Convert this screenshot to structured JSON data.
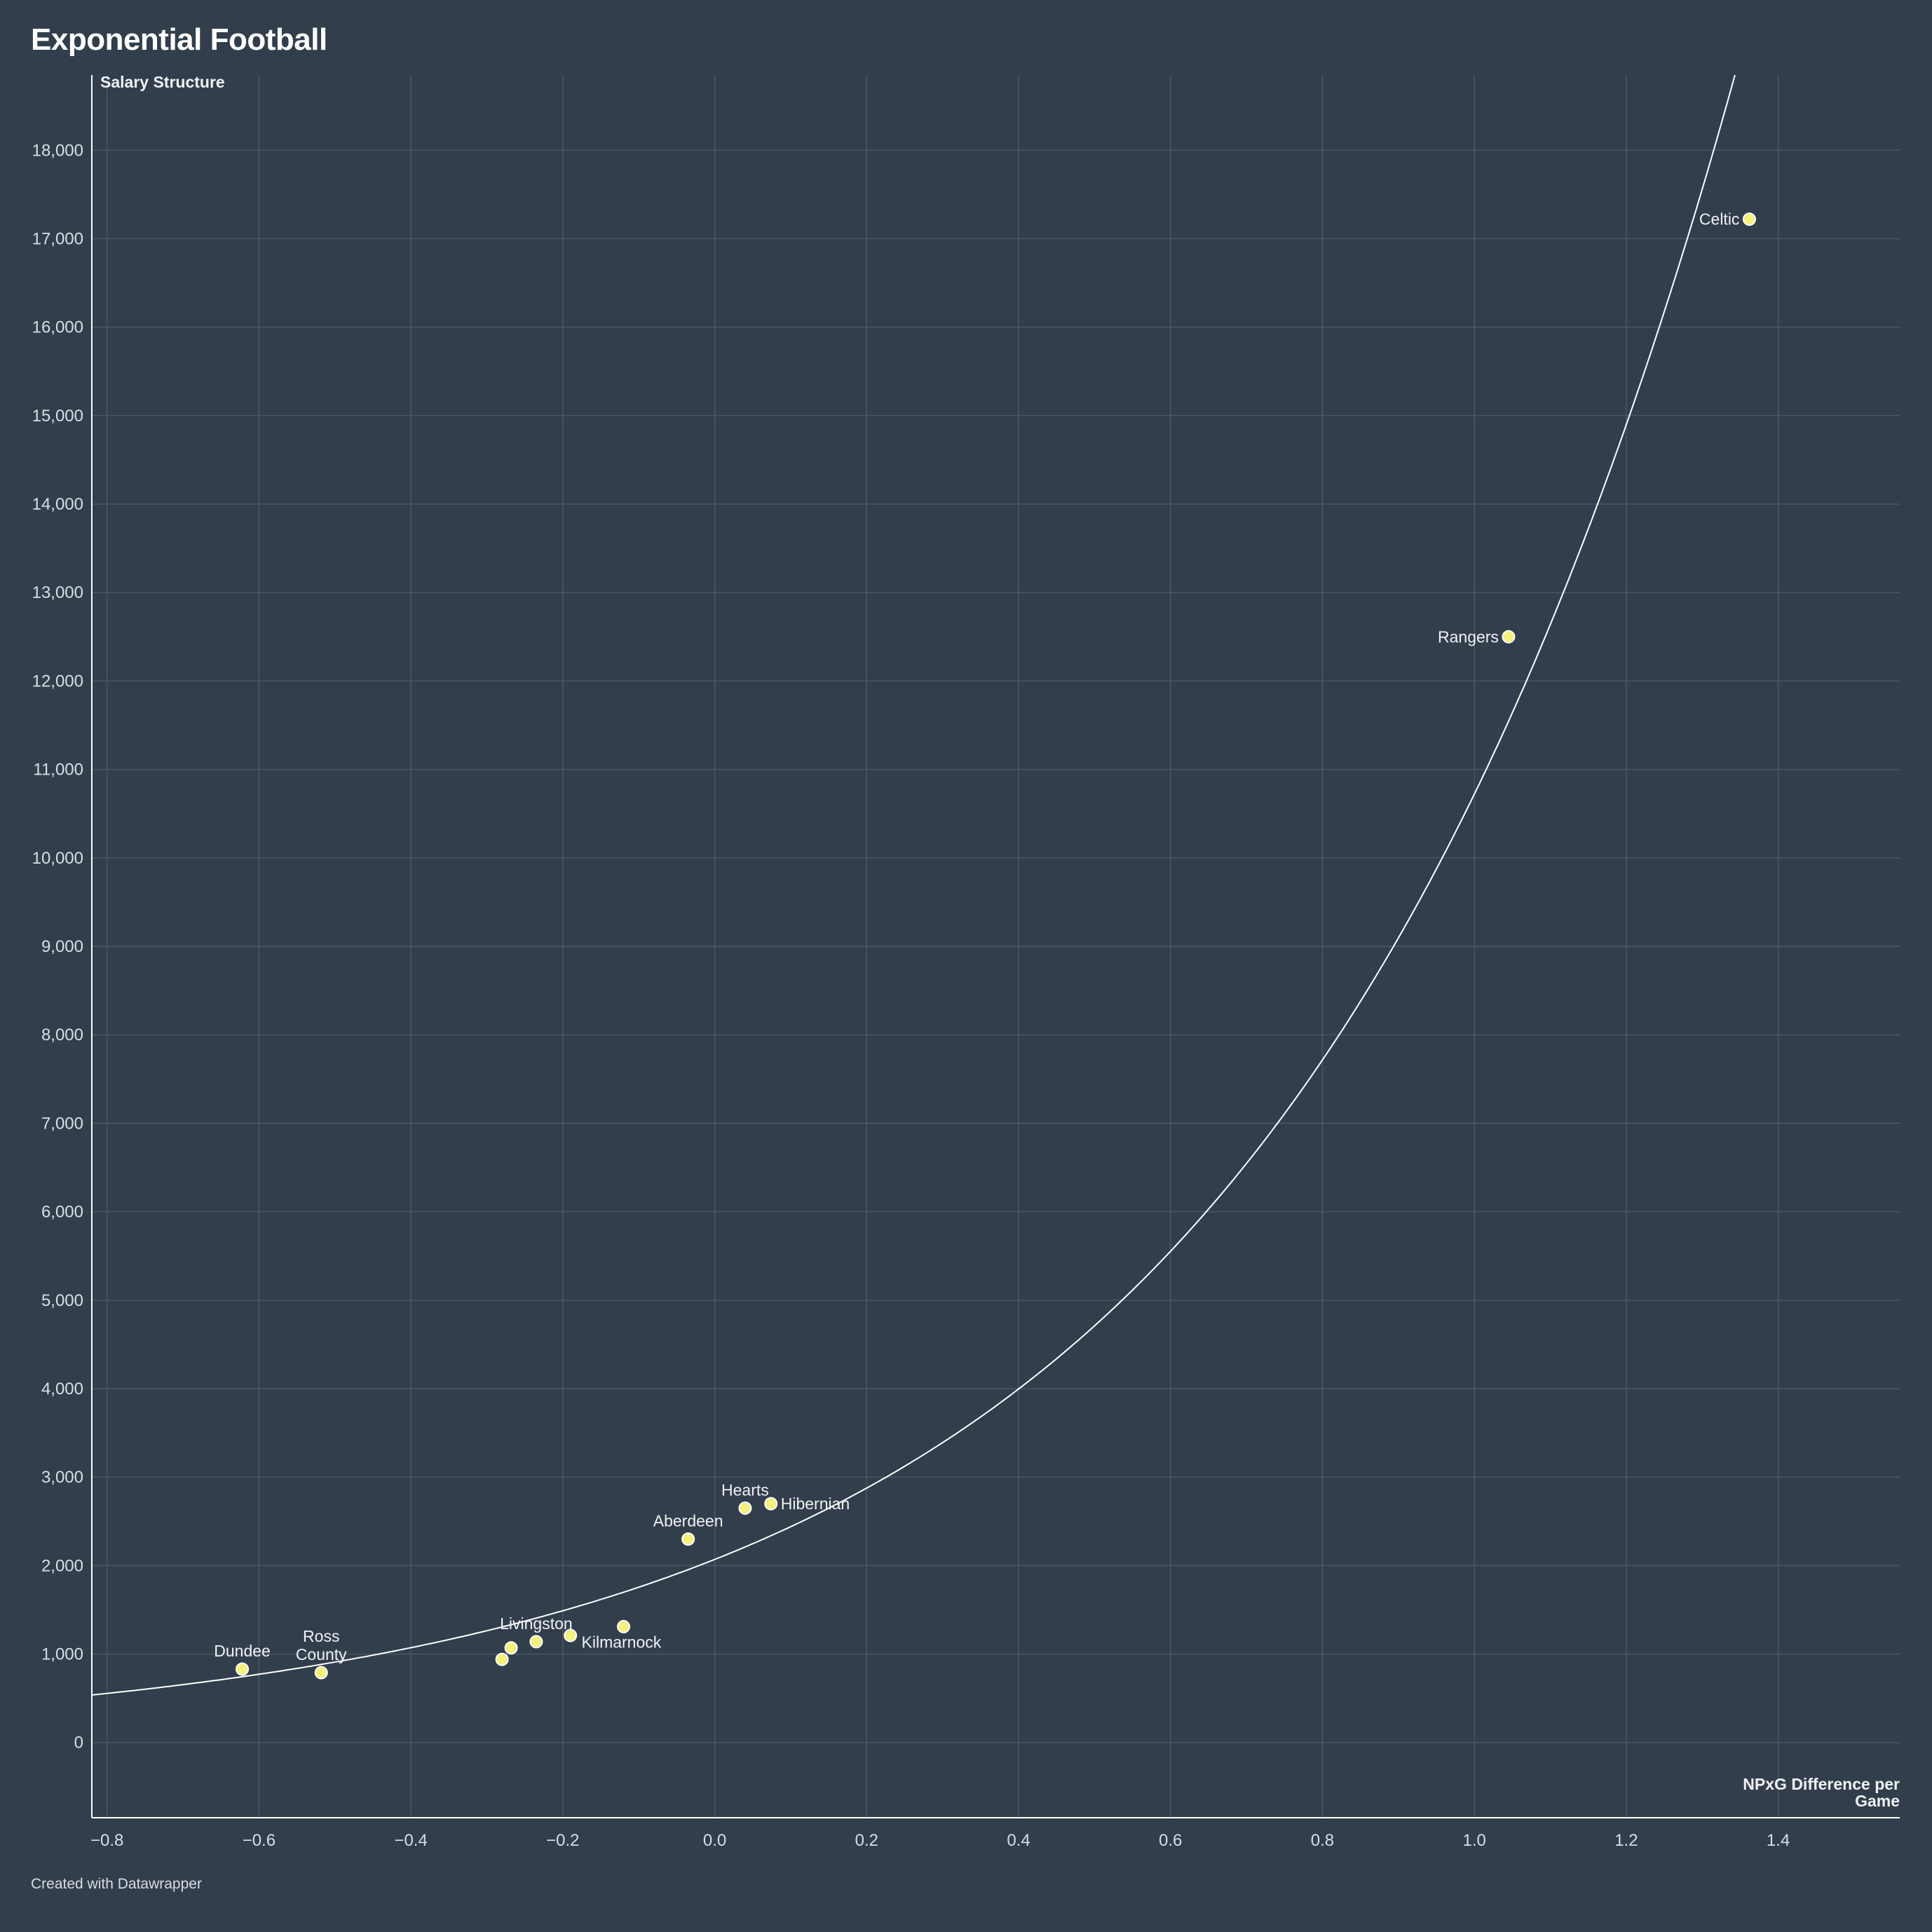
{
  "title": "Exponential Football",
  "credit": "Created with Datawrapper",
  "colors": {
    "background": "#323e4c",
    "point": "#f4f17d",
    "trendline": "#ffffff",
    "grid": "#4d5866"
  },
  "chart_data": {
    "type": "scatter",
    "xlabel": "NPxG Difference per Game",
    "ylabel": "Salary Structure",
    "xlim": [
      -0.82,
      1.56
    ],
    "ylim": [
      -850,
      18850
    ],
    "xticks": [
      -0.8,
      -0.6,
      -0.4,
      -0.2,
      0.0,
      0.2,
      0.4,
      0.6,
      0.8,
      1.0,
      1.2,
      1.4
    ],
    "xtick_labels": [
      "−0.8",
      "−0.6",
      "−0.4",
      "−0.2",
      "0.0",
      "0.2",
      "0.4",
      "0.6",
      "0.8",
      "1.0",
      "1.2",
      "1.4"
    ],
    "yticks": [
      0,
      1000,
      2000,
      3000,
      4000,
      5000,
      6000,
      7000,
      8000,
      9000,
      10000,
      11000,
      12000,
      13000,
      14000,
      15000,
      16000,
      17000,
      18000
    ],
    "ytick_labels": [
      "0",
      "1,000",
      "2,000",
      "3,000",
      "4,000",
      "5,000",
      "6,000",
      "7,000",
      "8,000",
      "9,000",
      "10,000",
      "11,000",
      "12,000",
      "13,000",
      "14,000",
      "15,000",
      "16,000",
      "17,000",
      "18,000"
    ],
    "grid": true,
    "trendline": {
      "type": "exponential",
      "a": 2070,
      "b": 1.6447
    },
    "points": [
      {
        "label": "Celtic",
        "x": 1.362,
        "y": 17220,
        "label_pos": "left"
      },
      {
        "label": "Rangers",
        "x": 1.045,
        "y": 12500,
        "label_pos": "left"
      },
      {
        "label": "Hearts",
        "x": 0.04,
        "y": 2650,
        "label_pos": "top"
      },
      {
        "label": "Hibernian",
        "x": 0.074,
        "y": 2700,
        "label_pos": "right"
      },
      {
        "label": "Aberdeen",
        "x": -0.035,
        "y": 2300,
        "label_pos": "top"
      },
      {
        "label": "Kilmarnock",
        "x": -0.12,
        "y": 1310,
        "label_pos": "below-right"
      },
      {
        "label": "",
        "x": -0.19,
        "y": 1210
      },
      {
        "label": "Livingston",
        "x": -0.235,
        "y": 1140,
        "label_pos": "top"
      },
      {
        "label": "",
        "x": -0.268,
        "y": 1070
      },
      {
        "label": "",
        "x": -0.28,
        "y": 940
      },
      {
        "label": "Ross County",
        "x": -0.518,
        "y": 790,
        "label_pos": "top",
        "label_lines": [
          "Ross",
          "County"
        ]
      },
      {
        "label": "Dundee",
        "x": -0.622,
        "y": 830,
        "label_pos": "top"
      }
    ]
  }
}
